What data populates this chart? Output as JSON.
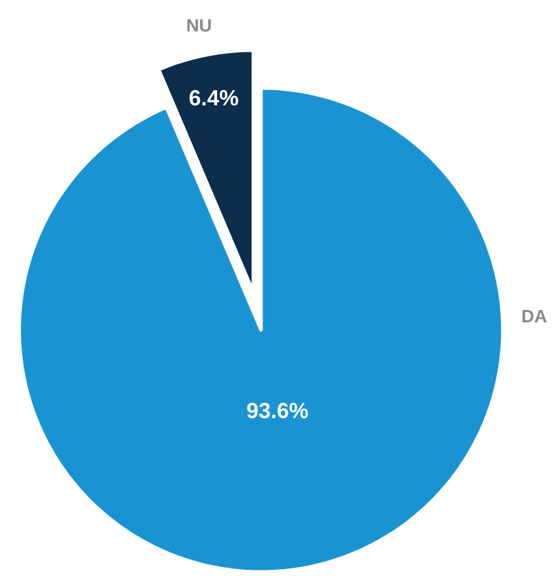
{
  "chart_data": {
    "type": "pie",
    "categories": [
      "DA",
      "NU"
    ],
    "values": [
      93.6,
      6.4
    ],
    "colors": [
      "#1a93d3",
      "#0d2d4d"
    ],
    "value_labels": [
      "93.6%",
      "6.4%"
    ]
  }
}
